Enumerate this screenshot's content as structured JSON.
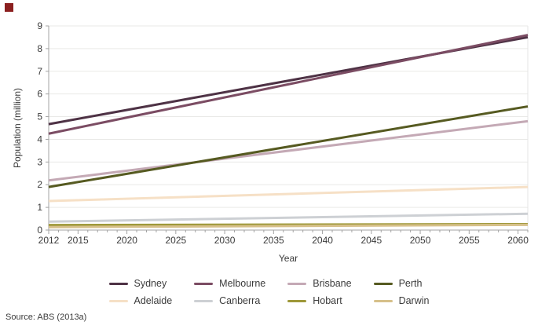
{
  "page": {
    "corner_marker_color": "#8b1f1f",
    "background": "#ffffff",
    "source_note": "Source: ABS (2013a)"
  },
  "chart_data": {
    "type": "line",
    "title": "",
    "xlabel": "Year",
    "ylabel": "Population (million)",
    "xlim": [
      2012,
      2061
    ],
    "ylim": [
      0,
      9
    ],
    "x_ticks": [
      2012,
      2015,
      2020,
      2025,
      2030,
      2035,
      2040,
      2045,
      2050,
      2055,
      2060
    ],
    "y_ticks": [
      0,
      1,
      2,
      3,
      4,
      5,
      6,
      7,
      8,
      9
    ],
    "grid": "horizontal",
    "legend_position": "bottom",
    "legend_rows": 2,
    "colors": {
      "grid": "#e9e9e7",
      "axis": "#a3a3a3",
      "tick_text": "#3a3a3a",
      "plot_border_right": "#e4e4e4"
    },
    "series": [
      {
        "name": "Sydney",
        "color": "#4e3245",
        "x": [
          2012,
          2061
        ],
        "values": [
          4.67,
          8.5
        ]
      },
      {
        "name": "Melbourne",
        "color": "#7b4c63",
        "x": [
          2012,
          2061
        ],
        "values": [
          4.25,
          8.6
        ]
      },
      {
        "name": "Brisbane",
        "color": "#c4a9b5",
        "x": [
          2012,
          2061
        ],
        "values": [
          2.19,
          4.8
        ]
      },
      {
        "name": "Perth",
        "color": "#565a21",
        "x": [
          2012,
          2061
        ],
        "values": [
          1.9,
          5.45
        ]
      },
      {
        "name": "Adelaide",
        "color": "#f6e0c6",
        "x": [
          2012,
          2061
        ],
        "values": [
          1.28,
          1.9
        ]
      },
      {
        "name": "Canberra",
        "color": "#cdd0d4",
        "x": [
          2012,
          2061
        ],
        "values": [
          0.37,
          0.72
        ]
      },
      {
        "name": "Hobart",
        "color": "#9e9839",
        "x": [
          2012,
          2061
        ],
        "values": [
          0.22,
          0.26
        ]
      },
      {
        "name": "Darwin",
        "color": "#d6c08a",
        "x": [
          2012,
          2061
        ],
        "values": [
          0.13,
          0.23
        ]
      }
    ]
  }
}
